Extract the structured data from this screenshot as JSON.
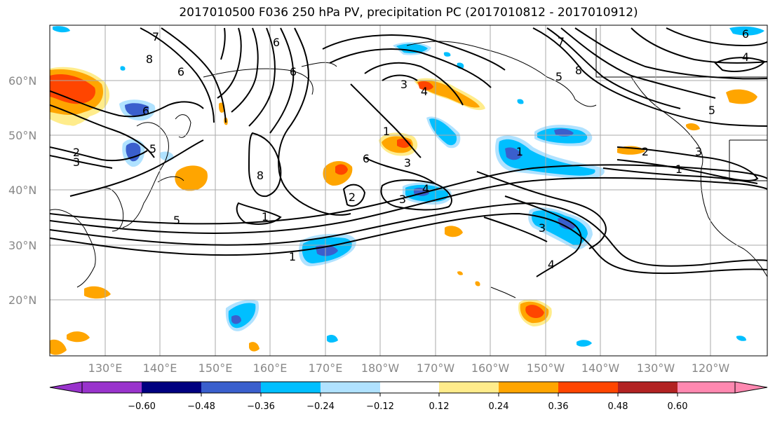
{
  "title": "2017010500 F036 250 hPa PV, precipitation PC (2017010812 - 2017010912)",
  "lat_labels": [
    "60°N",
    "50°N",
    "40°N",
    "30°N",
    "20°N"
  ],
  "lon_labels": [
    "130°E",
    "140°E",
    "150°E",
    "160°E",
    "170°E",
    "180°W",
    "170°W",
    "160°W",
    "150°W",
    "140°W",
    "130°W",
    "120°W"
  ],
  "colorbar": {
    "colors": [
      "#9933cc",
      "#000080",
      "#3a5fcd",
      "#00bfff",
      "#b0e2ff",
      "#ffffff",
      "#ffec8b",
      "#ffa500",
      "#ff4500",
      "#b22222",
      "#ff88b0"
    ],
    "tick_labels": [
      "−0.60",
      "−0.48",
      "−0.36",
      "−0.24",
      "−0.12",
      "0.12",
      "0.24",
      "0.36",
      "0.48",
      "0.60"
    ]
  },
  "contour_labels": [
    "7",
    "8",
    "6",
    "6",
    "6",
    "5",
    "2",
    "3",
    "6",
    "8",
    "1",
    "5",
    "2",
    "1",
    "3",
    "3",
    "4",
    "3",
    "6",
    "7",
    "8",
    "1",
    "2",
    "1",
    "3",
    "4",
    "5",
    "6",
    "4",
    "5",
    "1",
    "3",
    "4"
  ]
}
